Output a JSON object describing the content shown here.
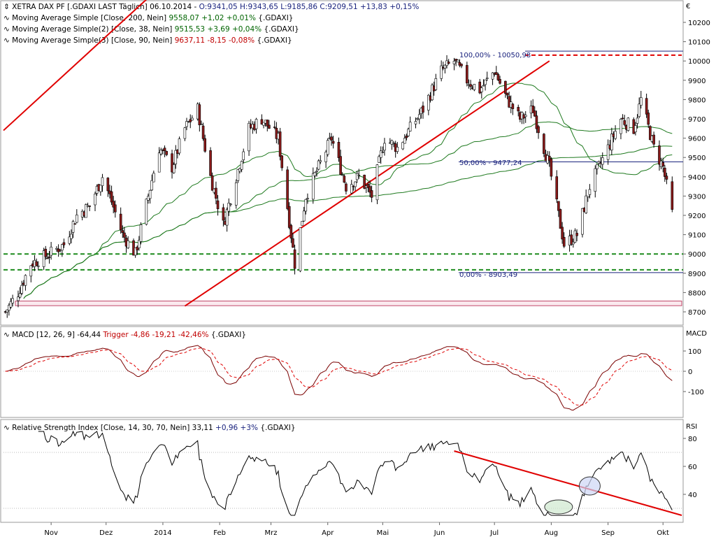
{
  "header": {
    "symbol_title": "XETRA DAX PF [.GDAXI LAST Täglich] 06.10.2014 - ",
    "ohlc": "O:9341,05 H:9343,65 L:9185,86 C:9209,51 +13,83 +0,15%",
    "sma200_label": "Moving Average Simple [Close, 200, Nein]",
    "sma200_value": "9558,07 +1,02 +0,01%",
    "sma200_sym": "{.GDAXI}",
    "sma38_label": "Moving Average Simple(2) [Close, 38, Nein]",
    "sma38_value": "9515,53 +3,69 +0,04%",
    "sma38_sym": "{.GDAXI}",
    "sma90_label": "Moving Average Simple(3) [Close, 90, Nein]",
    "sma90_value": "9637,11 -8,15 -0,08%",
    "sma90_sym": "{.GDAXI}",
    "currency": "€"
  },
  "macd_header": {
    "label": "MACD [12, 26, 9] -64,44",
    "trigger": "Trigger -4,86 -19,21 -42,46%",
    "sym": "{.GDAXI}",
    "axis_title": "MACD"
  },
  "rsi_header": {
    "label": "Relative Strength Index [Close, 14, 30, 70, Nein] 33,11",
    "change": "+0,96 +3%",
    "sym": "{.GDAXI}",
    "axis_title": "RSI"
  },
  "fib": {
    "top_label": "100,00% - 10050,98",
    "mid_label": "50,00% - 9477,24",
    "low_label": "0,00% - 8903,49"
  },
  "colors": {
    "up": "#ffffff",
    "down": "#8b1a1a",
    "sma": "#1f7a1f",
    "trend": "#e00000",
    "fib": "#1a237e",
    "support": "#1e8c1e",
    "band": "#c0486a"
  },
  "chart_data": [
    {
      "type": "candlestick",
      "series": [
        {
          "name": "XETRA DAX PF",
          "kind": "ohlc",
          "start": "2014-10-06",
          "values": []
        },
        {
          "name": "Moving Average Simple [Close, 200, Nein]",
          "kind": "line"
        },
        {
          "name": "Moving Average Simple(2) [Close, 38, Nein]",
          "kind": "line"
        },
        {
          "name": "Moving Average Simple(3) [Close, 90, Nein]",
          "kind": "line"
        }
      ],
      "x_tick_labels": [
        "Nov",
        "Dez",
        "2014",
        "Feb",
        "Mrz",
        "Apr",
        "Mai",
        "Jun",
        "Jul",
        "Aug",
        "Sep",
        "Okt"
      ],
      "y_tick_labels": [
        "8700",
        "8800",
        "8900",
        "9000",
        "9100",
        "9200",
        "9300",
        "9400",
        "9500",
        "9600",
        "9700",
        "9800",
        "9900",
        "10000",
        "10100",
        "10200"
      ],
      "ylim": [
        8640,
        10280
      ],
      "horizontal_lines": [
        {
          "value": 9000,
          "style": "dashed",
          "color": "#1e8c1e"
        },
        {
          "value": 8918,
          "style": "dashed",
          "color": "#1e8c1e"
        },
        {
          "value": 10050.98,
          "style": "solid",
          "color": "#1a237e"
        },
        {
          "value": 9477.24,
          "style": "solid",
          "color": "#1a237e"
        },
        {
          "value": 8903.49,
          "style": "solid",
          "color": "#1a237e"
        },
        {
          "value": 8756,
          "style": "solid",
          "color": "#c0486a"
        },
        {
          "value": 8732,
          "style": "solid",
          "color": "#c0486a"
        }
      ]
    },
    {
      "type": "line",
      "series": [
        {
          "name": "MACD"
        },
        {
          "name": "Trigger",
          "style": "dashed"
        }
      ],
      "y_tick_labels": [
        "-100",
        "0",
        "100"
      ],
      "ylim": [
        -215,
        145
      ]
    },
    {
      "type": "line",
      "series": [
        {
          "name": "RSI"
        }
      ],
      "y_tick_labels": [
        "40",
        "60",
        "80"
      ],
      "ylim": [
        22,
        88
      ],
      "levels": [
        70,
        30
      ]
    }
  ]
}
